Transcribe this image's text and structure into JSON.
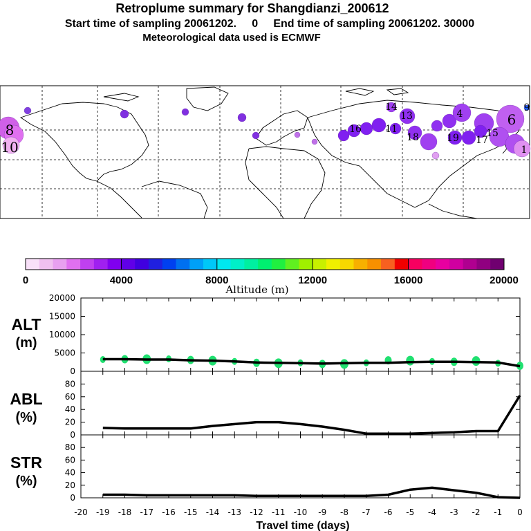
{
  "header": {
    "title": "Retroplume summary for Shangdianzi_200612",
    "sampling": "Start time of sampling 20061202.     0     End time of sampling 20061202. 30000",
    "met": "Meteorological data used is ECMWF"
  },
  "colorbar": {
    "label": "Altitude (m)",
    "ticks": [
      "0",
      "4000",
      "8000",
      "12000",
      "16000",
      "20000"
    ],
    "colors": [
      "#f8e0f8",
      "#f0c0f0",
      "#e8a0f0",
      "#e070f0",
      "#c040f0",
      "#a020f0",
      "#8000f0",
      "#6000e8",
      "#4000e0",
      "#2020e0",
      "#0040f0",
      "#0070f0",
      "#00a0f8",
      "#00c8f8",
      "#00e8f0",
      "#00f0c8",
      "#00f0a0",
      "#00f070",
      "#20f040",
      "#60f020",
      "#a0f000",
      "#c8f000",
      "#f0f000",
      "#f8d800",
      "#f8b000",
      "#f89000",
      "#f86020",
      "#f00000",
      "#f80060",
      "#f00080",
      "#e800a0",
      "#d000a0",
      "#b00090",
      "#900080",
      "#700070"
    ]
  },
  "map_labels": [
    "8",
    "10",
    "6",
    "4",
    "1",
    "15",
    "17",
    "19",
    "13",
    "11",
    "18",
    "16",
    "14",
    "9"
  ],
  "chart_data": [
    {
      "type": "line",
      "panel": "ALT",
      "ylabel": "ALT\n(m)",
      "ylabel_lines": [
        "ALT",
        "(m)"
      ],
      "ylim": [
        0,
        20000
      ],
      "yticks": [
        "0",
        "5000",
        "10000",
        "15000",
        "20000"
      ],
      "x": [
        -19,
        -18,
        -17,
        -16,
        -15,
        -14,
        -13,
        -12,
        -11,
        -10,
        -9,
        -8,
        -7,
        -6,
        -5,
        -4,
        -3,
        -2,
        -1,
        0
      ],
      "values": [
        3300,
        3300,
        3200,
        3200,
        3000,
        2900,
        2700,
        2400,
        2300,
        2200,
        2100,
        2200,
        2300,
        2300,
        2500,
        2600,
        2600,
        2500,
        2400,
        1400
      ],
      "dots": [
        3200,
        3300,
        3300,
        3400,
        3100,
        2900,
        2700,
        2300,
        2200,
        2300,
        2000,
        2000,
        2300,
        3000,
        2900,
        2700,
        2600,
        2800,
        2200,
        1500
      ]
    },
    {
      "type": "line",
      "panel": "ABL",
      "ylabel": "ABL\n(%)",
      "ylabel_lines": [
        "ABL",
        "(%)"
      ],
      "ylim": [
        0,
        100
      ],
      "yticks": [
        "0",
        "20",
        "40",
        "60",
        "80"
      ],
      "x": [
        -19,
        -18,
        -17,
        -16,
        -15,
        -14,
        -13,
        -12,
        -11,
        -10,
        -9,
        -8,
        -7,
        -6,
        -5,
        -4,
        -3,
        -2,
        -1,
        0
      ],
      "values": [
        11,
        10,
        10,
        10,
        10,
        14,
        17,
        20,
        20,
        17,
        13,
        8,
        2,
        2,
        2,
        3,
        4,
        6,
        6,
        62
      ]
    },
    {
      "type": "line",
      "panel": "STR",
      "ylabel": "STR\n(%)",
      "ylabel_lines": [
        "STR",
        "(%)"
      ],
      "ylim": [
        0,
        100
      ],
      "yticks": [
        "0",
        "20",
        "40",
        "60",
        "80"
      ],
      "x": [
        -19,
        -18,
        -17,
        -16,
        -15,
        -14,
        -13,
        -12,
        -11,
        -10,
        -9,
        -8,
        -7,
        -6,
        -5,
        -4,
        -3,
        -2,
        -1,
        0
      ],
      "values": [
        5,
        5,
        4,
        4,
        4,
        4,
        4,
        3,
        3,
        3,
        3,
        3,
        3,
        5,
        13,
        16,
        12,
        8,
        1,
        0
      ]
    }
  ],
  "xaxis": {
    "label": "Travel time (days)",
    "ticks": [
      "-20",
      "-19",
      "-18",
      "-17",
      "-16",
      "-15",
      "-14",
      "-13",
      "-12",
      "-11",
      "-10",
      "-9",
      "-8",
      "-7",
      "-6",
      "-5",
      "-4",
      "-3",
      "-2",
      "-1",
      "0"
    ]
  }
}
